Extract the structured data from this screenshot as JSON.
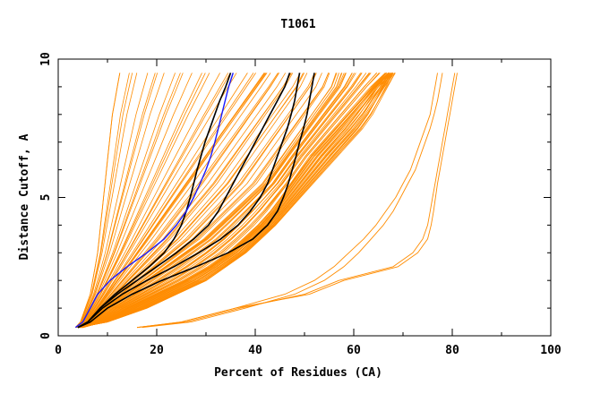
{
  "chart_data": {
    "type": "line",
    "title": "T1061",
    "xlabel": "Percent of Residues (CA)",
    "ylabel": "Distance Cutoff, A",
    "xlim": [
      0,
      100
    ],
    "ylim": [
      0,
      10
    ],
    "x_ticks": [
      0,
      20,
      40,
      60,
      80,
      100
    ],
    "y_ticks": [
      0,
      5,
      10
    ],
    "x_tick_labels": [
      "0",
      "20",
      "40",
      "60",
      "80",
      "100"
    ],
    "y_tick_labels": [
      "0",
      "5",
      "10"
    ],
    "grid": false,
    "legend": "none",
    "colors": {
      "background_models": "#ff8c00",
      "highlight": "#000000",
      "blue": "#1a1aff",
      "axis": "#000000"
    },
    "cutoffs": [
      0.3,
      0.5,
      1,
      1.5,
      2,
      2.5,
      3,
      3.5,
      4,
      4.5,
      5,
      5.5,
      6,
      6.5,
      7,
      7.5,
      8,
      8.5,
      9,
      9.5
    ],
    "series": [
      {
        "role": "blue",
        "x": [
          3.5,
          5,
          6.5,
          8,
          10.5,
          14,
          18,
          21.5,
          24,
          26,
          27.5,
          28.8,
          30,
          31,
          31.8,
          32.5,
          33.2,
          33.9,
          34.6,
          35.5
        ]
      },
      {
        "role": "black",
        "x": [
          4,
          6,
          8.5,
          11.5,
          15,
          18.5,
          21.5,
          23.5,
          25,
          26,
          26.8,
          27.5,
          28.2,
          29,
          29.8,
          30.8,
          31.8,
          32.8,
          34,
          35
        ]
      },
      {
        "role": "black",
        "x": [
          4,
          6,
          8.5,
          12,
          16,
          20,
          24,
          27.5,
          30.5,
          32.5,
          34,
          35.5,
          37,
          38.5,
          40,
          41.5,
          43,
          44.5,
          46,
          47
        ]
      },
      {
        "role": "black",
        "x": [
          4,
          6,
          9,
          13,
          18,
          23.5,
          28.5,
          33,
          36.5,
          39,
          41,
          42.5,
          43.5,
          44.5,
          45.5,
          46.5,
          47.3,
          48,
          48.5,
          49
        ]
      },
      {
        "role": "black",
        "x": [
          4,
          6.5,
          10,
          15,
          21,
          28,
          34.5,
          39.5,
          42.5,
          44.5,
          45.7,
          46.7,
          47.5,
          48.3,
          49,
          49.8,
          50.5,
          51,
          51.5,
          52
        ]
      },
      {
        "role": "orange",
        "x": [
          3.5,
          4.5,
          5.5,
          6.5,
          7,
          7.5,
          8,
          8.3,
          8.6,
          8.9,
          9.2,
          9.5,
          9.8,
          10.1,
          10.4,
          10.7,
          11,
          11.5,
          12,
          12.5
        ]
      },
      {
        "role": "orange",
        "x": [
          4,
          6,
          8,
          10,
          12,
          14,
          16,
          18,
          20,
          22,
          24,
          26,
          28,
          30,
          32,
          34,
          36,
          38,
          40,
          42
        ]
      },
      {
        "role": "orange",
        "x": [
          4,
          7,
          10,
          14,
          18,
          22,
          26,
          30,
          33,
          36,
          39,
          42,
          44,
          46,
          48,
          50,
          52,
          54,
          56,
          57
        ]
      },
      {
        "role": "orange",
        "x": [
          5,
          9,
          14,
          20,
          26,
          31,
          35,
          38,
          41,
          43.5,
          45.5,
          47.5,
          49.5,
          51.5,
          54,
          56.5,
          59,
          61.5,
          64,
          67
        ]
      },
      {
        "role": "orange",
        "x": [
          4,
          10,
          18,
          24,
          30,
          34,
          38,
          41,
          44,
          46.5,
          49,
          51.5,
          54,
          56.5,
          59,
          61.5,
          63.5,
          65,
          66.5,
          68
        ]
      },
      {
        "role": "orange",
        "x": [
          16,
          25,
          36,
          46,
          52,
          56,
          59,
          62,
          64.5,
          66.5,
          68.5,
          70,
          71.5,
          72.5,
          73.5,
          74.5,
          75.5,
          76,
          76.5,
          77
        ]
      },
      {
        "role": "orange",
        "x": [
          17,
          27,
          38,
          48,
          54,
          58,
          61,
          63.5,
          66,
          68,
          69.5,
          71,
          72.5,
          73.5,
          74.5,
          75.5,
          76.3,
          77,
          77.5,
          78
        ]
      },
      {
        "role": "orange",
        "x": [
          16,
          26,
          37,
          50,
          57,
          68,
          72,
          74,
          75,
          75.5,
          76,
          76.5,
          77,
          77.5,
          78,
          78.5,
          79,
          79.5,
          80,
          80.5
        ]
      },
      {
        "role": "orange",
        "x": [
          16,
          25,
          36,
          51,
          58,
          69,
          73,
          75,
          75.7,
          76.2,
          76.6,
          77,
          77.5,
          78,
          78.5,
          79,
          79.5,
          80,
          80.5,
          81
        ]
      }
    ]
  }
}
